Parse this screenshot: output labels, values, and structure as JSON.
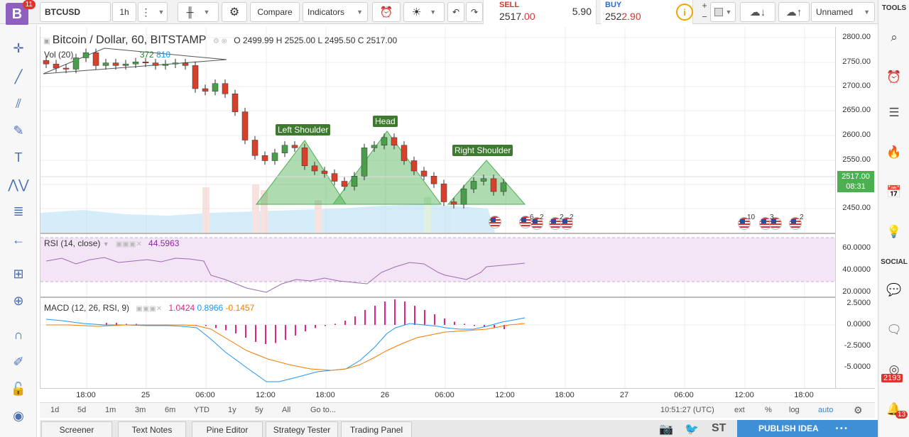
{
  "app": {
    "logo_letter": "B",
    "logo_badge": "11",
    "symbol": "BTCUSD",
    "interval": "1h",
    "compare_label": "Compare",
    "indicators_label": "Indicators",
    "sell": {
      "label": "SELL",
      "price_main": "2517.",
      "price_tail": "00",
      "color": "#e0312d"
    },
    "spread": "5.90",
    "buy": {
      "label": "BUY",
      "price_main": "252",
      "price_tail": "2.90",
      "color": "#2a6bd6"
    },
    "layout_name": "Unnamed"
  },
  "chart": {
    "title": "Bitcoin / Dollar, 60, BITSTAMP",
    "ohlc": {
      "o_label": "O",
      "o": "2499.99",
      "h_label": "H",
      "h": "2525.00",
      "l_label": "L",
      "l": "2495.50",
      "c_label": "C",
      "c": "2517.00"
    },
    "vol_label": "Vol (20)",
    "vol_values": [
      "372",
      "810"
    ],
    "annotations": [
      "Left Shoulder",
      "Head",
      "Right Shoulder"
    ],
    "last_price": "2517.00",
    "countdown": "08:31",
    "price_ticks": [
      "2800.00",
      "2750.00",
      "2700.00",
      "2650.00",
      "2600.00",
      "2550.00",
      "2450.00"
    ],
    "time_ticks": [
      "18:00",
      "25",
      "06:00",
      "12:00",
      "18:00",
      "26",
      "06:00",
      "12:00",
      "18:00",
      "27",
      "06:00",
      "12:00",
      "18:00"
    ],
    "event_counts": [
      "6",
      "2",
      "2",
      "2",
      "10",
      "3",
      "2"
    ]
  },
  "rsi": {
    "label": "RSI (14, close)",
    "value": "44.5963",
    "value_color": "#8e24aa",
    "ticks": [
      "60.0000",
      "40.0000",
      "20.0000"
    ]
  },
  "macd": {
    "label": "MACD (12, 26, RSI, 9)",
    "v1": "1.0424",
    "v1_color": "#e0248c",
    "v2": "0.8966",
    "v2_color": "#2196f3",
    "v3": "-0.1457",
    "v3_color": "#f57c00",
    "ticks": [
      "2.5000",
      "0.0000",
      "-2.5000",
      "-5.0000"
    ]
  },
  "range_bar": {
    "ranges": [
      "1d",
      "5d",
      "1m",
      "3m",
      "6m",
      "YTD",
      "1y",
      "5y",
      "All"
    ],
    "goto": "Go to...",
    "clock": "10:51:27 (UTC)",
    "ext": "ext",
    "pct": "%",
    "log": "log",
    "auto": "auto"
  },
  "bottom_tabs": [
    "Screener",
    "Text Notes",
    "Pine Editor",
    "Strategy Tester",
    "Trading Panel"
  ],
  "bottom_right": {
    "st_label": "ST",
    "publish_label": "PUBLISH IDEA",
    "more": "• • •"
  },
  "right_sidebar": {
    "tools_label": "TOOLS",
    "social_label": "SOCIAL",
    "chat_badge": "2193",
    "alert_badge": "13"
  },
  "chart_data": {
    "type": "candlestick",
    "series": [
      {
        "name": "Bitcoin / Dollar",
        "o": [
          2755,
          2748,
          2740,
          2738,
          2760,
          2770,
          2745,
          2750,
          2745,
          2748,
          2752,
          2750,
          2745,
          2748,
          2750,
          2745,
          2700,
          2695,
          2710,
          2690,
          2655,
          2600,
          2570,
          2560,
          2575,
          2590,
          2585,
          2550,
          2540,
          2535,
          2520,
          2510,
          2530,
          2585,
          2590,
          2605,
          2590,
          2560,
          2540,
          2530,
          2515,
          2480,
          2475,
          2505,
          2520,
          2525,
          2500
        ],
        "c": [
          2748,
          2740,
          2738,
          2760,
          2770,
          2745,
          2750,
          2745,
          2748,
          2752,
          2750,
          2745,
          2748,
          2750,
          2745,
          2700,
          2695,
          2710,
          2690,
          2655,
          2600,
          2570,
          2560,
          2575,
          2590,
          2585,
          2550,
          2540,
          2535,
          2520,
          2510,
          2530,
          2585,
          2590,
          2605,
          2590,
          2560,
          2540,
          2530,
          2515,
          2480,
          2475,
          2505,
          2520,
          2525,
          2500,
          2517
        ]
      }
    ],
    "ylim": [
      2420,
      2820
    ]
  }
}
